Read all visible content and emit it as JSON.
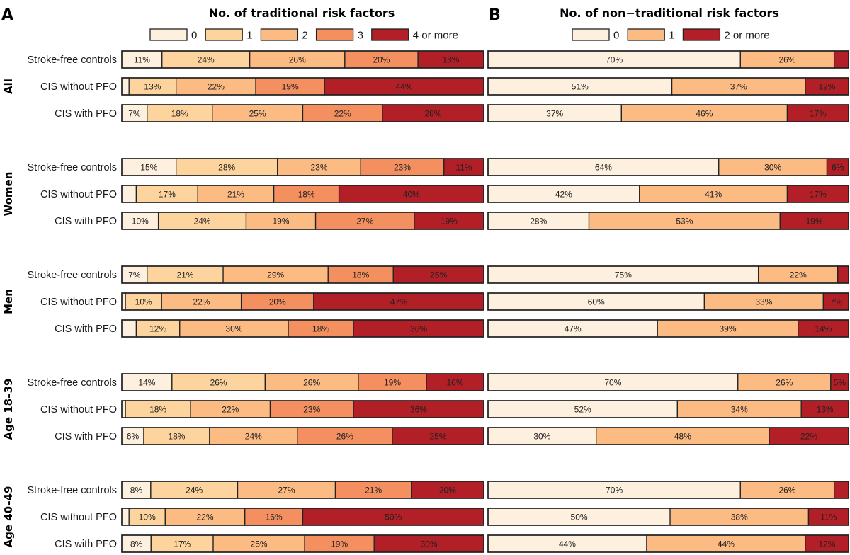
{
  "chart_data": [
    {
      "type": "bar",
      "orientation": "horizontal-stacked-100",
      "panel": "A",
      "title": "No. of traditional risk factors",
      "legend": {
        "placement": "top",
        "entries": [
          {
            "label": "0",
            "color": "#fef0de"
          },
          {
            "label": "1",
            "color": "#fdd49e"
          },
          {
            "label": "2",
            "color": "#fdbb84"
          },
          {
            "label": "3",
            "color": "#f4905f"
          },
          {
            "label": "4 or more",
            "color": "#b21f27"
          }
        ]
      },
      "groups": [
        {
          "name": "All",
          "rows": [
            {
              "label": "Stroke-free controls",
              "values": [
                11,
                24,
                26,
                20,
                18
              ]
            },
            {
              "label": "CIS without PFO",
              "values": [
                2,
                13,
                22,
                19,
                44
              ]
            },
            {
              "label": "CIS with PFO",
              "values": [
                7,
                18,
                25,
                22,
                28
              ]
            }
          ]
        },
        {
          "name": "Women",
          "rows": [
            {
              "label": "Stroke-free controls",
              "values": [
                15,
                28,
                23,
                23,
                11
              ]
            },
            {
              "label": "CIS without PFO",
              "values": [
                4,
                17,
                21,
                18,
                40
              ]
            },
            {
              "label": "CIS with PFO",
              "values": [
                10,
                24,
                19,
                27,
                19
              ]
            }
          ]
        },
        {
          "name": "Men",
          "rows": [
            {
              "label": "Stroke-free controls",
              "values": [
                7,
                21,
                29,
                18,
                25
              ]
            },
            {
              "label": "CIS without PFO",
              "values": [
                1,
                10,
                22,
                20,
                47
              ]
            },
            {
              "label": "CIS with PFO",
              "values": [
                4,
                12,
                30,
                18,
                36
              ]
            }
          ]
        },
        {
          "name": "Age 18–39",
          "rows": [
            {
              "label": "Stroke-free controls",
              "values": [
                14,
                26,
                26,
                19,
                16
              ]
            },
            {
              "label": "CIS without PFO",
              "values": [
                1,
                18,
                22,
                23,
                36
              ]
            },
            {
              "label": "CIS with PFO",
              "values": [
                6,
                18,
                24,
                26,
                25
              ]
            }
          ]
        },
        {
          "name": "Age 40–49",
          "rows": [
            {
              "label": "Stroke-free controls",
              "values": [
                8,
                24,
                27,
                21,
                20
              ]
            },
            {
              "label": "CIS without PFO",
              "values": [
                2,
                10,
                22,
                16,
                50
              ]
            },
            {
              "label": "CIS with PFO",
              "values": [
                8,
                17,
                25,
                19,
                30
              ]
            }
          ]
        }
      ],
      "labels_shown_min_pct": 4,
      "xlim": [
        0,
        100
      ]
    },
    {
      "type": "bar",
      "orientation": "horizontal-stacked-100",
      "panel": "B",
      "title": "No. of non−traditional risk factors",
      "legend": {
        "placement": "top",
        "entries": [
          {
            "label": "0",
            "color": "#fef0de"
          },
          {
            "label": "1",
            "color": "#fdbb84"
          },
          {
            "label": "2 or more",
            "color": "#b21f27"
          }
        ]
      },
      "groups": [
        {
          "name": "All",
          "rows": [
            {
              "label": "Stroke-free controls",
              "values": [
                70,
                26,
                4
              ]
            },
            {
              "label": "CIS without PFO",
              "values": [
                51,
                37,
                12
              ]
            },
            {
              "label": "CIS with PFO",
              "values": [
                37,
                46,
                17
              ]
            }
          ]
        },
        {
          "name": "Women",
          "rows": [
            {
              "label": "Stroke-free controls",
              "values": [
                64,
                30,
                6
              ]
            },
            {
              "label": "CIS without PFO",
              "values": [
                42,
                41,
                17
              ]
            },
            {
              "label": "CIS with PFO",
              "values": [
                28,
                53,
                19
              ]
            }
          ]
        },
        {
          "name": "Men",
          "rows": [
            {
              "label": "Stroke-free controls",
              "values": [
                75,
                22,
                3
              ]
            },
            {
              "label": "CIS without PFO",
              "values": [
                60,
                33,
                7
              ]
            },
            {
              "label": "CIS with PFO",
              "values": [
                47,
                39,
                14
              ]
            }
          ]
        },
        {
          "name": "Age 18–39",
          "rows": [
            {
              "label": "Stroke-free controls",
              "values": [
                70,
                26,
                5
              ]
            },
            {
              "label": "CIS without PFO",
              "values": [
                52,
                34,
                13
              ]
            },
            {
              "label": "CIS with PFO",
              "values": [
                30,
                48,
                22
              ]
            }
          ]
        },
        {
          "name": "Age 40–49",
          "rows": [
            {
              "label": "Stroke-free controls",
              "values": [
                70,
                26,
                4
              ]
            },
            {
              "label": "CIS without PFO",
              "values": [
                50,
                38,
                11
              ]
            },
            {
              "label": "CIS with PFO",
              "values": [
                44,
                44,
                12
              ]
            }
          ]
        }
      ],
      "labels_shown_min_pct": 4,
      "xlim": [
        0,
        100
      ]
    }
  ]
}
